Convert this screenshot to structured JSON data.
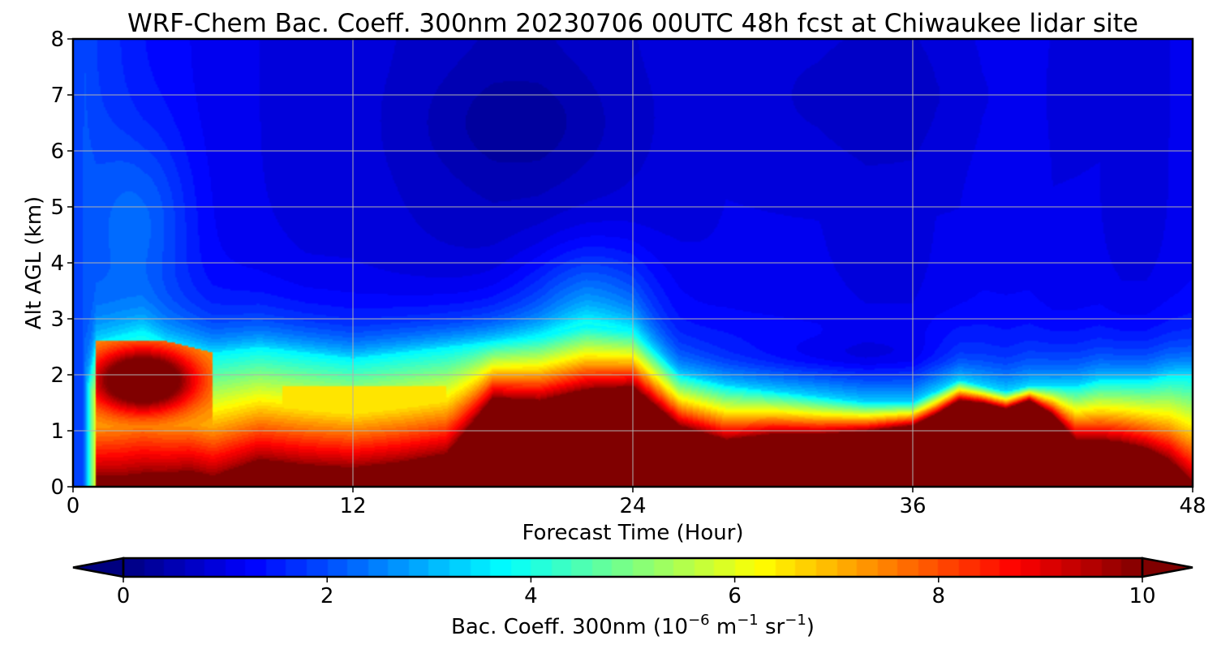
{
  "chart_data": {
    "type": "heatmap",
    "title": "WRF-Chem Bac. Coeff. 300nm  20230706 00UTC 48h fcst at Chiwaukee lidar site",
    "xlabel": "Forecast Time (Hour)",
    "ylabel": "Alt AGL (km)",
    "xlim": [
      0,
      48
    ],
    "ylim": [
      0,
      8
    ],
    "xticks": [
      "0",
      "12",
      "24",
      "36",
      "48"
    ],
    "yticks": [
      "0",
      "1",
      "2",
      "3",
      "4",
      "5",
      "6",
      "7",
      "8"
    ],
    "grid": true,
    "colorbar": {
      "label_main": "Bac. Coeff. 300nm  (10",
      "label_exp1": "−6",
      "label_mid": " m",
      "label_exp2": "−1",
      "label_mid2": " sr",
      "label_exp3": "−1",
      "label_end": ")",
      "range": [
        0,
        10
      ],
      "ticks": [
        "0",
        "2",
        "4",
        "6",
        "8",
        "10"
      ],
      "colormap": "jet",
      "extend": "both",
      "under_color": "#00007f",
      "over_color": "#7f0000"
    },
    "x_hours": [
      0,
      0.5,
      1,
      2,
      3,
      4,
      5,
      6,
      8,
      10,
      12,
      14,
      16,
      18,
      20,
      22,
      24,
      26,
      28,
      30,
      32,
      34,
      36,
      37,
      38,
      39,
      40,
      41,
      42,
      43,
      44,
      45,
      46,
      47,
      48
    ],
    "profile_description": "Approximate key vertical structure read from the plot per hour",
    "surface_layer_top_km": [
      0.0,
      0.0,
      0.2,
      0.2,
      0.25,
      0.25,
      0.3,
      0.2,
      0.5,
      0.4,
      0.35,
      0.45,
      0.6,
      1.6,
      1.55,
      1.75,
      1.8,
      1.1,
      0.85,
      0.95,
      0.95,
      1.0,
      1.1,
      1.3,
      1.55,
      1.5,
      1.4,
      1.55,
      1.3,
      0.85,
      0.85,
      0.8,
      0.7,
      0.5,
      0.1
    ],
    "aerosol_layer_top_km": [
      0.0,
      1.5,
      2.6,
      2.7,
      2.8,
      2.6,
      2.5,
      2.4,
      2.5,
      2.4,
      2.3,
      2.4,
      2.5,
      2.6,
      2.7,
      2.9,
      2.8,
      2.0,
      1.8,
      1.7,
      1.6,
      1.5,
      1.5,
      1.7,
      1.9,
      1.8,
      1.7,
      1.8,
      1.8,
      1.8,
      1.9,
      1.9,
      1.9,
      2.0,
      2.0
    ],
    "background_coeff_upper": [
      1.5,
      2.0,
      1.8,
      1.6,
      1.4,
      1.3,
      1.2,
      1.1,
      1.0,
      0.9,
      0.9,
      0.8,
      0.7,
      0.6,
      0.6,
      0.7,
      0.8,
      0.9,
      1.0,
      1.0,
      1.0,
      0.9,
      0.9,
      1.0,
      1.0,
      1.1,
      1.1,
      1.1,
      1.0,
      1.0,
      1.0,
      0.9,
      0.9,
      1.0,
      1.1
    ],
    "max_value_near_surface": 10
  }
}
